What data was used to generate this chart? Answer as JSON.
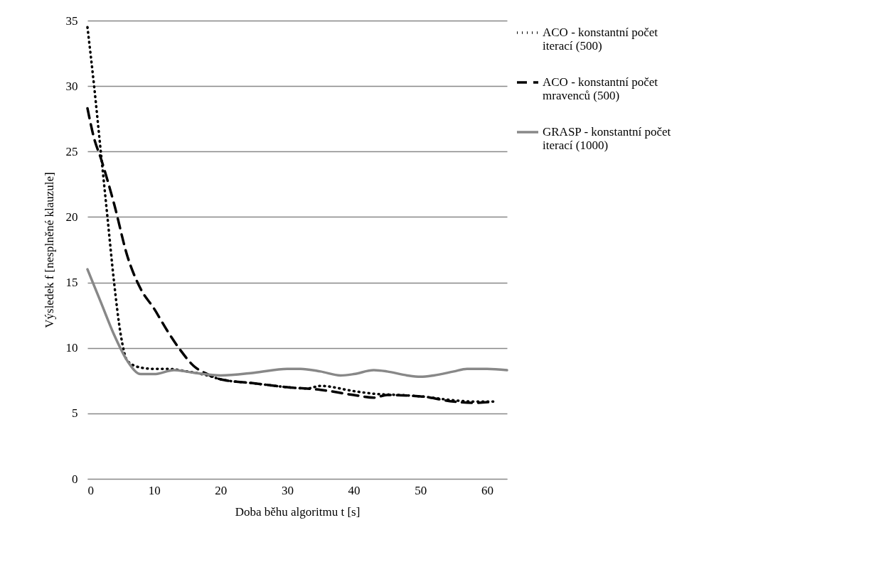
{
  "chart_data": {
    "type": "line",
    "xlabel": "Doba běhu algoritmu t [s]",
    "ylabel": "Výsledek f [nesplněné klauzule]",
    "xlim": [
      0,
      63
    ],
    "xticks": [
      0,
      10,
      20,
      30,
      40,
      50,
      60
    ],
    "ylim": [
      0,
      35
    ],
    "yticks": [
      0,
      5,
      10,
      15,
      20,
      25,
      30,
      35
    ],
    "grid": "y",
    "legend": "right",
    "series": [
      {
        "name": "ACO - konstantní počet iterací (500)",
        "color": "#000000",
        "line_style": "dotted",
        "x": [
          0,
          1,
          2,
          3,
          4,
          5,
          6,
          8,
          10,
          12,
          15,
          18,
          20,
          25,
          30,
          33,
          35,
          40,
          43,
          47,
          50,
          55,
          58,
          61
        ],
        "values": [
          34.5,
          30,
          25,
          20,
          15,
          11,
          9,
          8.5,
          8.4,
          8.4,
          8.2,
          7.9,
          7.6,
          7.3,
          7,
          6.9,
          7.1,
          6.7,
          6.5,
          6.4,
          6.3,
          6,
          5.9,
          5.9
        ]
      },
      {
        "name": "ACO - konstantní počet mravenců (500)",
        "color": "#000000",
        "line_style": "dashed",
        "x": [
          0,
          1,
          2,
          4,
          6,
          8,
          10,
          12,
          14,
          16,
          18,
          20,
          25,
          30,
          35,
          40,
          43,
          45,
          50,
          55,
          58,
          61
        ],
        "values": [
          28.3,
          26,
          24.5,
          21,
          17,
          14.5,
          13,
          11.3,
          9.8,
          8.6,
          8,
          7.6,
          7.3,
          7,
          6.8,
          6.4,
          6.2,
          6.4,
          6.3,
          5.9,
          5.8,
          5.9
        ]
      },
      {
        "name": "GRASP - konstantní počet iterací (1000)",
        "color": "#888888",
        "line_style": "solid",
        "x": [
          0,
          2,
          4,
          6,
          8,
          10,
          13,
          16,
          20,
          25,
          30,
          32,
          35,
          38,
          40,
          43,
          45,
          48,
          50,
          52,
          55,
          57,
          60,
          63
        ],
        "values": [
          16,
          13.5,
          11,
          9,
          8,
          8,
          8.3,
          8.1,
          7.9,
          8.1,
          8.4,
          8.4,
          8.2,
          7.9,
          8,
          8.3,
          8.2,
          7.9,
          7.8,
          7.9,
          8.2,
          8.4,
          8.4,
          8.3
        ]
      }
    ]
  }
}
